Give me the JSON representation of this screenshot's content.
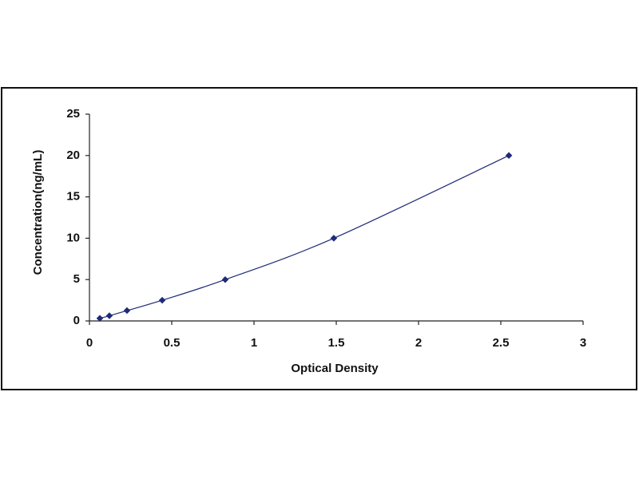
{
  "chart_data": {
    "type": "scatter",
    "x_label": "Optical Density",
    "y_label": "Concentration(ng/mL)",
    "x": [
      0.063,
      0.121,
      0.228,
      0.442,
      0.825,
      1.485,
      2.549
    ],
    "series": [
      {
        "color": "#1f2a78",
        "values": [
          0.312,
          0.625,
          1.25,
          2.5,
          5,
          10,
          20
        ]
      }
    ],
    "fit_line": true,
    "xlim": [
      0,
      3
    ],
    "xticks": [
      0,
      0.5,
      1,
      1.5,
      2,
      2.5,
      3
    ],
    "ylim": [
      0,
      25
    ],
    "yticks": [
      0,
      5,
      10,
      15,
      20,
      25
    ],
    "grid": false
  }
}
